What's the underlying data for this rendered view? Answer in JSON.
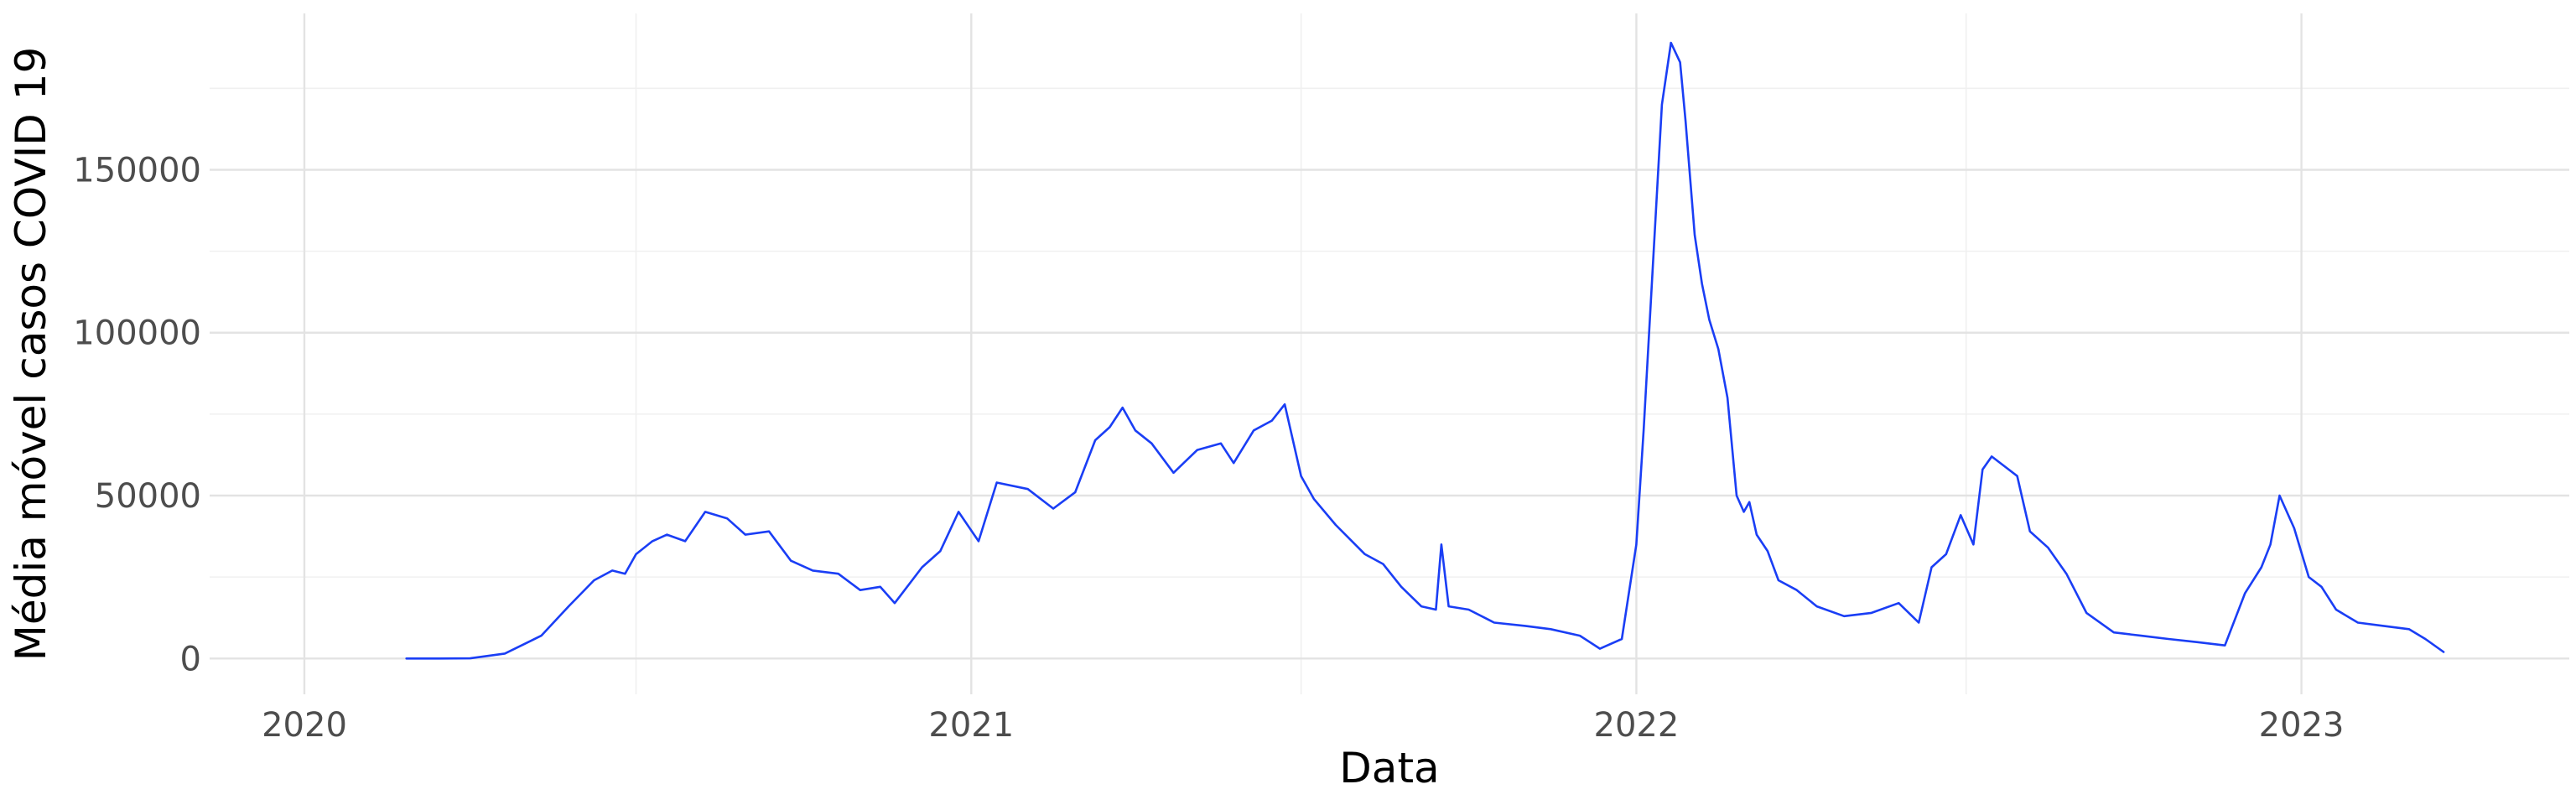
{
  "colors": {
    "line": "#1a3ef5",
    "grid_major": "#e3e3e3",
    "grid_minor": "#f0f0f0",
    "tick_text": "#4d4d4d"
  },
  "chart_data": {
    "type": "line",
    "title": "",
    "xlabel": "Data",
    "ylabel": "Média móvel casos COVID 19",
    "x_type": "date",
    "xlim": [
      "2019-11-10",
      "2023-05-28"
    ],
    "ylim": [
      -11000,
      198000
    ],
    "x_ticks": [
      "2020-01-01",
      "2021-01-01",
      "2022-01-01",
      "2023-01-01"
    ],
    "x_tick_labels": [
      "2020",
      "2021",
      "2022",
      "2023"
    ],
    "x_minor_ticks": [
      "2020-07-01",
      "2021-07-01",
      "2022-07-01"
    ],
    "y_ticks": [
      0,
      50000,
      100000,
      150000
    ],
    "y_tick_labels": [
      "0",
      "50000",
      "100000",
      "150000"
    ],
    "y_minor_ticks": [
      25000,
      75000,
      125000,
      175000
    ],
    "grid": true,
    "legend": "none",
    "series": [
      {
        "x": [
          "2020-02-26",
          "2020-03-15",
          "2020-04-01",
          "2020-04-20",
          "2020-05-10",
          "2020-05-25",
          "2020-06-08",
          "2020-06-18",
          "2020-06-25",
          "2020-07-01",
          "2020-07-10",
          "2020-07-18",
          "2020-07-28",
          "2020-08-08",
          "2020-08-20",
          "2020-08-30",
          "2020-09-12",
          "2020-09-24",
          "2020-10-06",
          "2020-10-20",
          "2020-11-01",
          "2020-11-12",
          "2020-11-20",
          "2020-12-05",
          "2020-12-15",
          "2020-12-25",
          "2021-01-05",
          "2021-01-15",
          "2021-02-01",
          "2021-02-15",
          "2021-02-27",
          "2021-03-10",
          "2021-03-18",
          "2021-03-25",
          "2021-04-01",
          "2021-04-10",
          "2021-04-22",
          "2021-05-05",
          "2021-05-18",
          "2021-05-25",
          "2021-06-05",
          "2021-06-15",
          "2021-06-22",
          "2021-07-01",
          "2021-07-08",
          "2021-07-20",
          "2021-08-05",
          "2021-08-15",
          "2021-08-25",
          "2021-09-05",
          "2021-09-13",
          "2021-09-16",
          "2021-09-20",
          "2021-10-01",
          "2021-10-15",
          "2021-11-01",
          "2021-11-15",
          "2021-12-01",
          "2021-12-12",
          "2021-12-24",
          "2022-01-01",
          "2022-01-05",
          "2022-01-10",
          "2022-01-15",
          "2022-01-20",
          "2022-01-25",
          "2022-01-28",
          "2022-02-02",
          "2022-02-06",
          "2022-02-10",
          "2022-02-15",
          "2022-02-20",
          "2022-02-25",
          "2022-03-01",
          "2022-03-04",
          "2022-03-08",
          "2022-03-14",
          "2022-03-20",
          "2022-03-30",
          "2022-04-10",
          "2022-04-25",
          "2022-05-10",
          "2022-05-25",
          "2022-06-05",
          "2022-06-12",
          "2022-06-20",
          "2022-06-28",
          "2022-07-05",
          "2022-07-10",
          "2022-07-15",
          "2022-07-22",
          "2022-07-29",
          "2022-08-05",
          "2022-08-15",
          "2022-08-25",
          "2022-09-05",
          "2022-09-20",
          "2022-10-05",
          "2022-10-20",
          "2022-11-05",
          "2022-11-20",
          "2022-12-01",
          "2022-12-10",
          "2022-12-15",
          "2022-12-20",
          "2022-12-28",
          "2023-01-05",
          "2023-01-12",
          "2023-01-20",
          "2023-02-01",
          "2023-02-15",
          "2023-03-01",
          "2023-03-10",
          "2023-03-20"
        ],
        "values": [
          0,
          0,
          50,
          1500,
          7000,
          16000,
          24000,
          27000,
          26000,
          32000,
          36000,
          38000,
          36000,
          45000,
          43000,
          38000,
          39000,
          30000,
          27000,
          26000,
          21000,
          22000,
          17000,
          28000,
          33000,
          45000,
          36000,
          54000,
          52000,
          46000,
          51000,
          67000,
          71000,
          77000,
          70000,
          66000,
          57000,
          64000,
          66000,
          60000,
          70000,
          73000,
          78000,
          56000,
          49000,
          41000,
          32000,
          29000,
          22000,
          16000,
          15000,
          35000,
          16000,
          15000,
          11000,
          10000,
          9000,
          7000,
          3000,
          6000,
          35000,
          70000,
          120000,
          170000,
          189000,
          183000,
          165000,
          130000,
          115000,
          104000,
          95000,
          80000,
          50000,
          45000,
          48000,
          38000,
          33000,
          24000,
          21000,
          16000,
          13000,
          14000,
          17000,
          11000,
          28000,
          32000,
          44000,
          35000,
          58000,
          62000,
          59000,
          56000,
          39000,
          34000,
          26000,
          14000,
          8000,
          7000,
          6000,
          5000,
          4000,
          20000,
          28000,
          35000,
          50000,
          40000,
          25000,
          22000,
          15000,
          11000,
          10000,
          9000,
          6000,
          2000
        ]
      }
    ]
  }
}
